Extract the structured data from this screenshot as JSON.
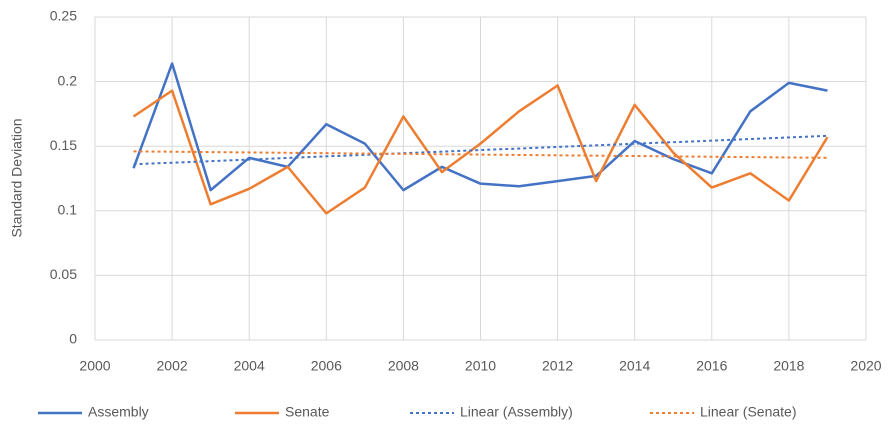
{
  "chart_data": {
    "type": "line",
    "y_label": "Standard Deviation",
    "xlim": [
      2000,
      2020
    ],
    "xticks": [
      2000,
      2002,
      2004,
      2006,
      2008,
      2010,
      2012,
      2014,
      2016,
      2018,
      2020
    ],
    "ylim": [
      0,
      0.25
    ],
    "yticks": [
      0,
      0.05,
      0.1,
      0.15,
      0.2,
      0.25
    ],
    "grid": true,
    "legend": "bottom",
    "series": [
      {
        "name": "Assembly",
        "color": "#4472c4",
        "dashed": false,
        "x": [
          2001,
          2002,
          2003,
          2004,
          2005,
          2006,
          2007,
          2008,
          2009,
          2010,
          2011,
          2012,
          2013,
          2014,
          2015,
          2016,
          2017,
          2018,
          2019
        ],
        "values": [
          0.133,
          0.214,
          0.116,
          0.141,
          0.134,
          0.167,
          0.152,
          0.116,
          0.134,
          0.121,
          0.119,
          0.123,
          0.127,
          0.154,
          0.14,
          0.129,
          0.177,
          0.199,
          0.193
        ]
      },
      {
        "name": "Senate",
        "color": "#ed7d31",
        "dashed": false,
        "x": [
          2001,
          2002,
          2003,
          2004,
          2005,
          2006,
          2007,
          2008,
          2009,
          2010,
          2011,
          2012,
          2013,
          2014,
          2015,
          2016,
          2017,
          2018,
          2019
        ],
        "values": [
          0.173,
          0.193,
          0.105,
          0.117,
          0.134,
          0.098,
          0.118,
          0.173,
          0.13,
          0.152,
          0.177,
          0.197,
          0.123,
          0.182,
          0.145,
          0.118,
          0.129,
          0.108,
          0.157
        ]
      },
      {
        "name": "Linear (Assembly)",
        "color": "#4472c4",
        "dashed": true,
        "x": [
          2001,
          2019
        ],
        "values": [
          0.136,
          0.158
        ]
      },
      {
        "name": "Linear (Senate)",
        "color": "#ed7d31",
        "dashed": true,
        "x": [
          2001,
          2019
        ],
        "values": [
          0.146,
          0.141
        ]
      }
    ]
  }
}
